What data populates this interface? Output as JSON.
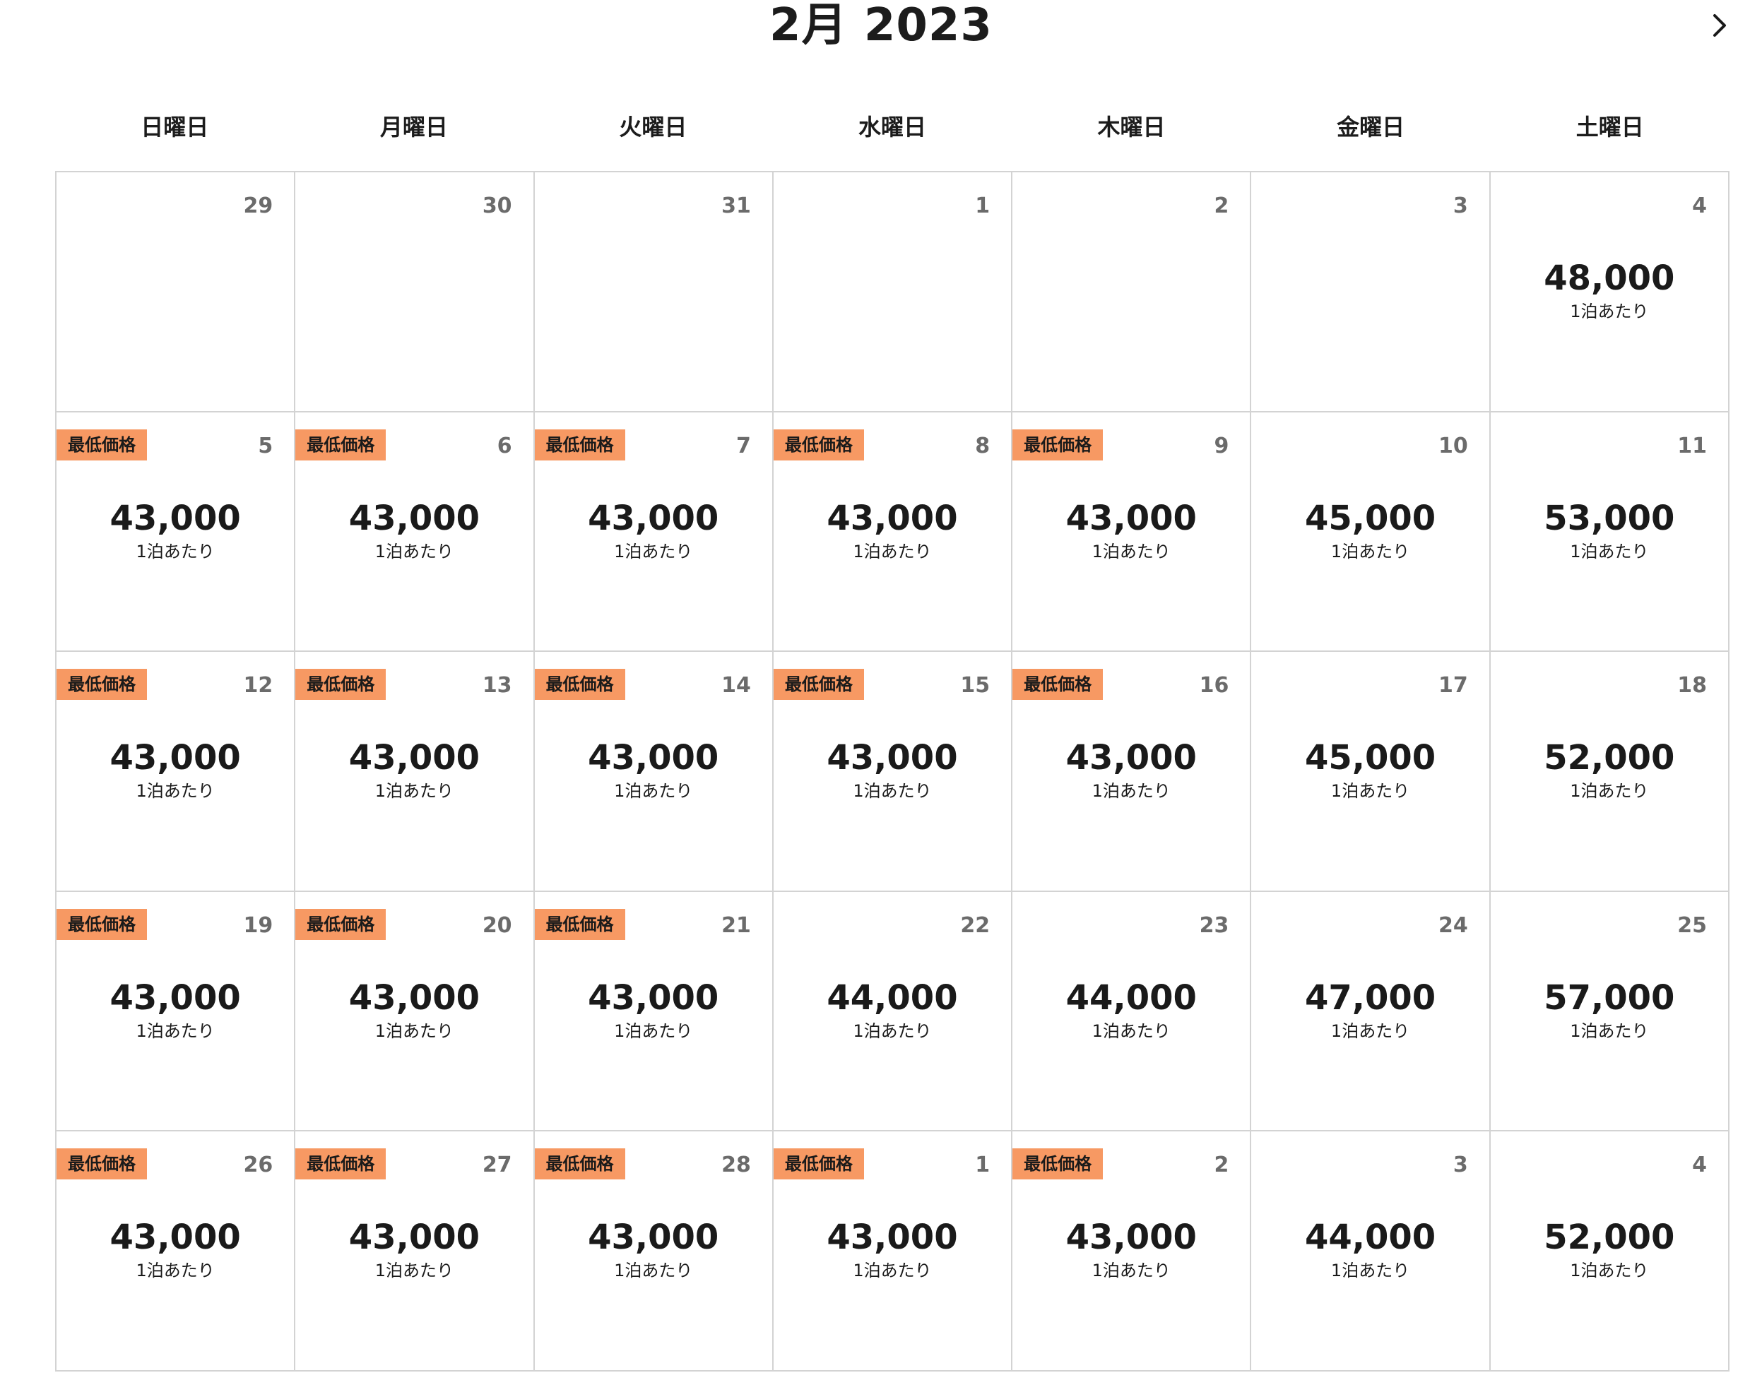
{
  "header": {
    "title": "2月 2023",
    "next_icon": "chevron-right-icon"
  },
  "weekdays": [
    "日曜日",
    "月曜日",
    "火曜日",
    "水曜日",
    "木曜日",
    "金曜日",
    "土曜日"
  ],
  "labels": {
    "lowest_badge": "最低価格",
    "per_night": "1泊あたり"
  },
  "colors": {
    "badge": "#f79963",
    "grid_line": "#d3d3d3",
    "day_number": "#6b6b6b"
  },
  "days": [
    {
      "day": "29",
      "price": null,
      "lowest": false
    },
    {
      "day": "30",
      "price": null,
      "lowest": false
    },
    {
      "day": "31",
      "price": null,
      "lowest": false
    },
    {
      "day": "1",
      "price": null,
      "lowest": false
    },
    {
      "day": "2",
      "price": null,
      "lowest": false
    },
    {
      "day": "3",
      "price": null,
      "lowest": false
    },
    {
      "day": "4",
      "price": "48,000",
      "lowest": false
    },
    {
      "day": "5",
      "price": "43,000",
      "lowest": true
    },
    {
      "day": "6",
      "price": "43,000",
      "lowest": true
    },
    {
      "day": "7",
      "price": "43,000",
      "lowest": true
    },
    {
      "day": "8",
      "price": "43,000",
      "lowest": true
    },
    {
      "day": "9",
      "price": "43,000",
      "lowest": true
    },
    {
      "day": "10",
      "price": "45,000",
      "lowest": false
    },
    {
      "day": "11",
      "price": "53,000",
      "lowest": false
    },
    {
      "day": "12",
      "price": "43,000",
      "lowest": true
    },
    {
      "day": "13",
      "price": "43,000",
      "lowest": true
    },
    {
      "day": "14",
      "price": "43,000",
      "lowest": true
    },
    {
      "day": "15",
      "price": "43,000",
      "lowest": true
    },
    {
      "day": "16",
      "price": "43,000",
      "lowest": true
    },
    {
      "day": "17",
      "price": "45,000",
      "lowest": false
    },
    {
      "day": "18",
      "price": "52,000",
      "lowest": false
    },
    {
      "day": "19",
      "price": "43,000",
      "lowest": true
    },
    {
      "day": "20",
      "price": "43,000",
      "lowest": true
    },
    {
      "day": "21",
      "price": "43,000",
      "lowest": true
    },
    {
      "day": "22",
      "price": "44,000",
      "lowest": false
    },
    {
      "day": "23",
      "price": "44,000",
      "lowest": false
    },
    {
      "day": "24",
      "price": "47,000",
      "lowest": false
    },
    {
      "day": "25",
      "price": "57,000",
      "lowest": false
    },
    {
      "day": "26",
      "price": "43,000",
      "lowest": true
    },
    {
      "day": "27",
      "price": "43,000",
      "lowest": true
    },
    {
      "day": "28",
      "price": "43,000",
      "lowest": true
    },
    {
      "day": "1",
      "price": "43,000",
      "lowest": true
    },
    {
      "day": "2",
      "price": "43,000",
      "lowest": true
    },
    {
      "day": "3",
      "price": "44,000",
      "lowest": false
    },
    {
      "day": "4",
      "price": "52,000",
      "lowest": false
    }
  ]
}
